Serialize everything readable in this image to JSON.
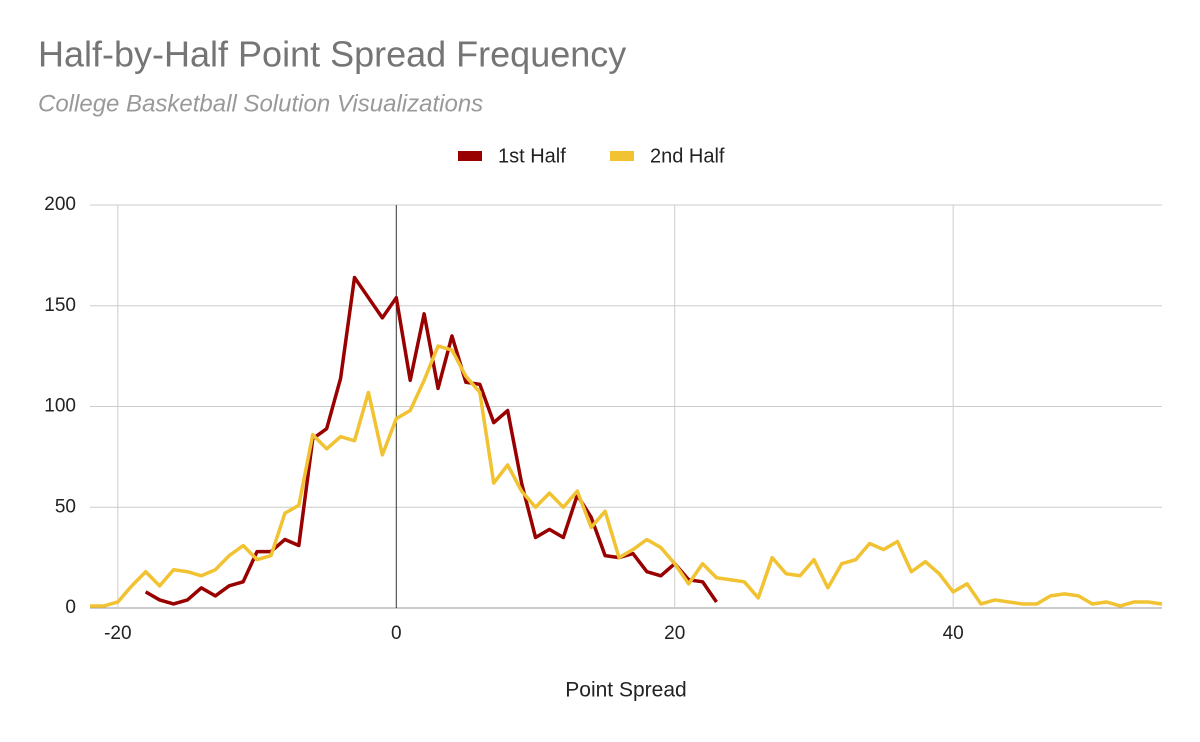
{
  "chart_data": {
    "type": "line",
    "title": "Half-by-Half Point Spread Frequency",
    "subtitle": "College Basketball Solution Visualizations",
    "x_label": "Point Spread",
    "x": [
      -22,
      -21,
      -20,
      -19,
      -18,
      -17,
      -16,
      -15,
      -14,
      -13,
      -12,
      -11,
      -10,
      -9,
      -8,
      -7,
      -6,
      -5,
      -4,
      -3,
      -2,
      -1,
      0,
      1,
      2,
      3,
      4,
      5,
      6,
      7,
      8,
      9,
      10,
      11,
      12,
      13,
      14,
      15,
      16,
      17,
      18,
      19,
      20,
      21,
      22,
      23,
      24,
      25,
      26,
      27,
      28,
      29,
      30,
      31,
      32,
      33,
      34,
      35,
      36,
      37,
      38,
      39,
      40,
      41,
      42,
      43,
      44,
      45,
      46,
      47,
      48,
      49,
      50,
      51,
      52,
      53,
      54,
      55
    ],
    "series": [
      {
        "name": "1st Half",
        "color": "#990000",
        "values": [
          null,
          null,
          null,
          null,
          8,
          4,
          2,
          4,
          10,
          6,
          11,
          13,
          28,
          28,
          34,
          31,
          84,
          89,
          114,
          164,
          154,
          144,
          154,
          113,
          146,
          109,
          135,
          112,
          111,
          92,
          98,
          62,
          35,
          39,
          35,
          56,
          45,
          26,
          25,
          27,
          18,
          16,
          22,
          14,
          13,
          3,
          null,
          null,
          null,
          null,
          null,
          null,
          null,
          null,
          null,
          null,
          null,
          null,
          null,
          null,
          null,
          null,
          null,
          null,
          null,
          null,
          null,
          null,
          null,
          null,
          null,
          null,
          null,
          null,
          null,
          null,
          null,
          null
        ]
      },
      {
        "name": "2nd Half",
        "color": "#f1c232",
        "values": [
          1,
          1,
          3,
          11,
          18,
          11,
          19,
          18,
          16,
          19,
          26,
          31,
          24,
          26,
          47,
          51,
          86,
          79,
          85,
          83,
          107,
          76,
          94,
          98,
          113,
          130,
          128,
          115,
          107,
          62,
          71,
          58,
          50,
          57,
          50,
          58,
          40,
          48,
          25,
          29,
          34,
          30,
          22,
          12,
          22,
          15,
          14,
          13,
          5,
          25,
          17,
          16,
          24,
          10,
          22,
          24,
          32,
          29,
          33,
          18,
          23,
          17,
          8,
          12,
          2,
          4,
          3,
          2,
          2,
          6,
          7,
          6,
          2,
          3,
          1,
          3,
          3,
          2
        ]
      }
    ],
    "xlim": [
      -22,
      55
    ],
    "xticks": [
      -20,
      0,
      20,
      40
    ],
    "ylim": [
      0,
      200
    ],
    "yticks": [
      0,
      50,
      100,
      150,
      200
    ],
    "grid": true,
    "legend": "top"
  }
}
